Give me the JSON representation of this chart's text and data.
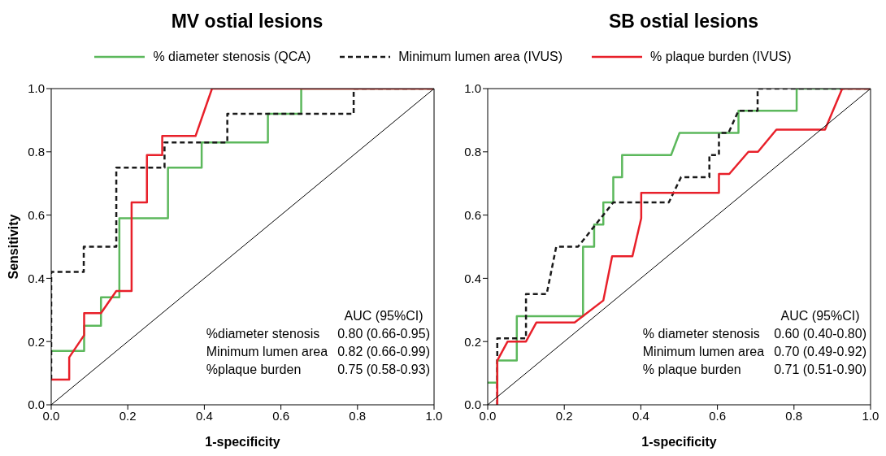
{
  "chart_data": [
    {
      "type": "line",
      "title": "MV ostial lesions",
      "xlabel": "1-specificity",
      "ylabel": "Sensitivity",
      "legend": "top",
      "line_style": "solid",
      "xlim": [
        0,
        1
      ],
      "ylim": [
        0,
        1
      ],
      "xticks": [
        {
          "value": 0,
          "label": "0.0"
        },
        {
          "value": 0.2,
          "label": "0.2"
        },
        {
          "value": 0.4,
          "label": "0.4"
        },
        {
          "value": 0.6,
          "label": "0.6"
        },
        {
          "value": 0.8,
          "label": "0.8"
        },
        {
          "value": 1,
          "label": "1.0"
        }
      ],
      "yticks": [
        {
          "value": 0,
          "label": "0.0"
        },
        {
          "value": 0.2,
          "label": "0.2"
        },
        {
          "value": 0.4,
          "label": "0.4"
        },
        {
          "value": 0.6,
          "label": "0.6"
        },
        {
          "value": 0.8,
          "label": "0.8"
        },
        {
          "value": 1,
          "label": "1.0"
        }
      ],
      "annotations": [
        "AUC (95%CI)",
        "%diameter stenosis",
        "Minimum lumen area",
        "%plaque burden",
        "0.80 (0.66-0.95)",
        "0.82 (0.66-0.99)",
        "0.75 (0.58-0.93)"
      ],
      "series": [
        {
          "name": "% diameter stenosis (QCA)",
          "color": "#5cb85c",
          "x": [
            0,
            0.086,
            0.086,
            0.13,
            0.13,
            0.178,
            0.178,
            0.305,
            0.305,
            0.393,
            0.393,
            0.566,
            0.566,
            0.653,
            0.653,
            1.0
          ],
          "values": [
            0.17,
            0.17,
            0.25,
            0.25,
            0.34,
            0.34,
            0.59,
            0.59,
            0.75,
            0.75,
            0.83,
            0.83,
            0.92,
            0.92,
            1.0,
            1.0
          ]
        },
        {
          "name": "Minimum lumen area (IVUS)",
          "color": "#1a1a1a",
          "line_style": "dashed",
          "x": [
            0,
            0,
            0.085,
            0.085,
            0.17,
            0.17,
            0.296,
            0.296,
            0.46,
            0.46,
            0.79,
            0.79,
            1.0
          ],
          "values": [
            0.08,
            0.42,
            0.42,
            0.5,
            0.5,
            0.75,
            0.75,
            0.83,
            0.83,
            0.92,
            0.92,
            1.0,
            1.0
          ]
        },
        {
          "name": "% plaque burden (IVUS)",
          "color": "#e8202a",
          "x": [
            0,
            0.047,
            0.047,
            0.086,
            0.086,
            0.13,
            0.17,
            0.21,
            0.21,
            0.25,
            0.25,
            0.29,
            0.29,
            0.377,
            0.42,
            1.0
          ],
          "values": [
            0.08,
            0.08,
            0.15,
            0.22,
            0.29,
            0.29,
            0.36,
            0.36,
            0.64,
            0.64,
            0.79,
            0.79,
            0.85,
            0.85,
            1.0,
            1.0
          ]
        },
        {
          "color": "#000000",
          "x": [
            0,
            1
          ],
          "values": [
            0,
            1
          ]
        }
      ]
    },
    {
      "type": "line",
      "title": "SB ostial lesions",
      "xlabel": "1-specificity",
      "line_style": "solid",
      "xlim": [
        0,
        1
      ],
      "ylim": [
        0,
        1
      ],
      "xticks": [
        {
          "value": 0,
          "label": "0.0"
        },
        {
          "value": 0.2,
          "label": "0.2"
        },
        {
          "value": 0.4,
          "label": "0.4"
        },
        {
          "value": 0.6,
          "label": "0.6"
        },
        {
          "value": 0.8,
          "label": "0.8"
        },
        {
          "value": 1,
          "label": "1.0"
        }
      ],
      "yticks": [
        {
          "value": 0,
          "label": "0.0"
        },
        {
          "value": 0.2,
          "label": "0.2"
        },
        {
          "value": 0.4,
          "label": "0.4"
        },
        {
          "value": 0.6,
          "label": "0.6"
        },
        {
          "value": 0.8,
          "label": "0.8"
        },
        {
          "value": 1,
          "label": "1.0"
        }
      ],
      "annotations": [
        "AUC (95%CI)",
        "% diameter stenosis",
        "Minimum lumen area",
        "% plaque burden",
        "0.60 (0.40-0.80)",
        "0.70 (0.49-0.92)",
        "0.71 (0.51-0.90)"
      ],
      "series": [
        {
          "color": "#5cb85c",
          "x": [
            0,
            0.025,
            0.025,
            0.076,
            0.076,
            0.249,
            0.249,
            0.278,
            0.278,
            0.302,
            0.302,
            0.328,
            0.328,
            0.351,
            0.351,
            0.479,
            0.501,
            0.655,
            0.655,
            0.807,
            0.807,
            1.0
          ],
          "values": [
            0.07,
            0.07,
            0.14,
            0.14,
            0.28,
            0.28,
            0.5,
            0.5,
            0.57,
            0.57,
            0.64,
            0.64,
            0.72,
            0.72,
            0.79,
            0.79,
            0.86,
            0.86,
            0.93,
            0.93,
            1.0,
            1.0
          ]
        },
        {
          "color": "#1a1a1a",
          "line_style": "dashed",
          "x": [
            0.025,
            0.025,
            0.1,
            0.1,
            0.154,
            0.179,
            0.236,
            0.328,
            0.473,
            0.505,
            0.579,
            0.579,
            0.604,
            0.604,
            0.629,
            0.655,
            0.705,
            0.705,
            1.0
          ],
          "values": [
            0,
            0.21,
            0.21,
            0.35,
            0.35,
            0.5,
            0.5,
            0.64,
            0.64,
            0.72,
            0.72,
            0.79,
            0.79,
            0.86,
            0.86,
            0.93,
            0.93,
            1.0,
            1.0
          ]
        },
        {
          "color": "#e8202a",
          "x": [
            0.025,
            0.025,
            0.052,
            0.1,
            0.127,
            0.227,
            0.302,
            0.325,
            0.378,
            0.401,
            0.401,
            0.604,
            0.604,
            0.631,
            0.681,
            0.706,
            0.754,
            0.881,
            0.926,
            1.0
          ],
          "values": [
            0,
            0.14,
            0.2,
            0.2,
            0.26,
            0.26,
            0.33,
            0.47,
            0.47,
            0.59,
            0.67,
            0.67,
            0.73,
            0.73,
            0.8,
            0.8,
            0.87,
            0.87,
            1.0,
            1.0
          ]
        },
        {
          "color": "#000000",
          "x": [
            0,
            1
          ],
          "values": [
            0,
            1
          ]
        }
      ]
    }
  ]
}
